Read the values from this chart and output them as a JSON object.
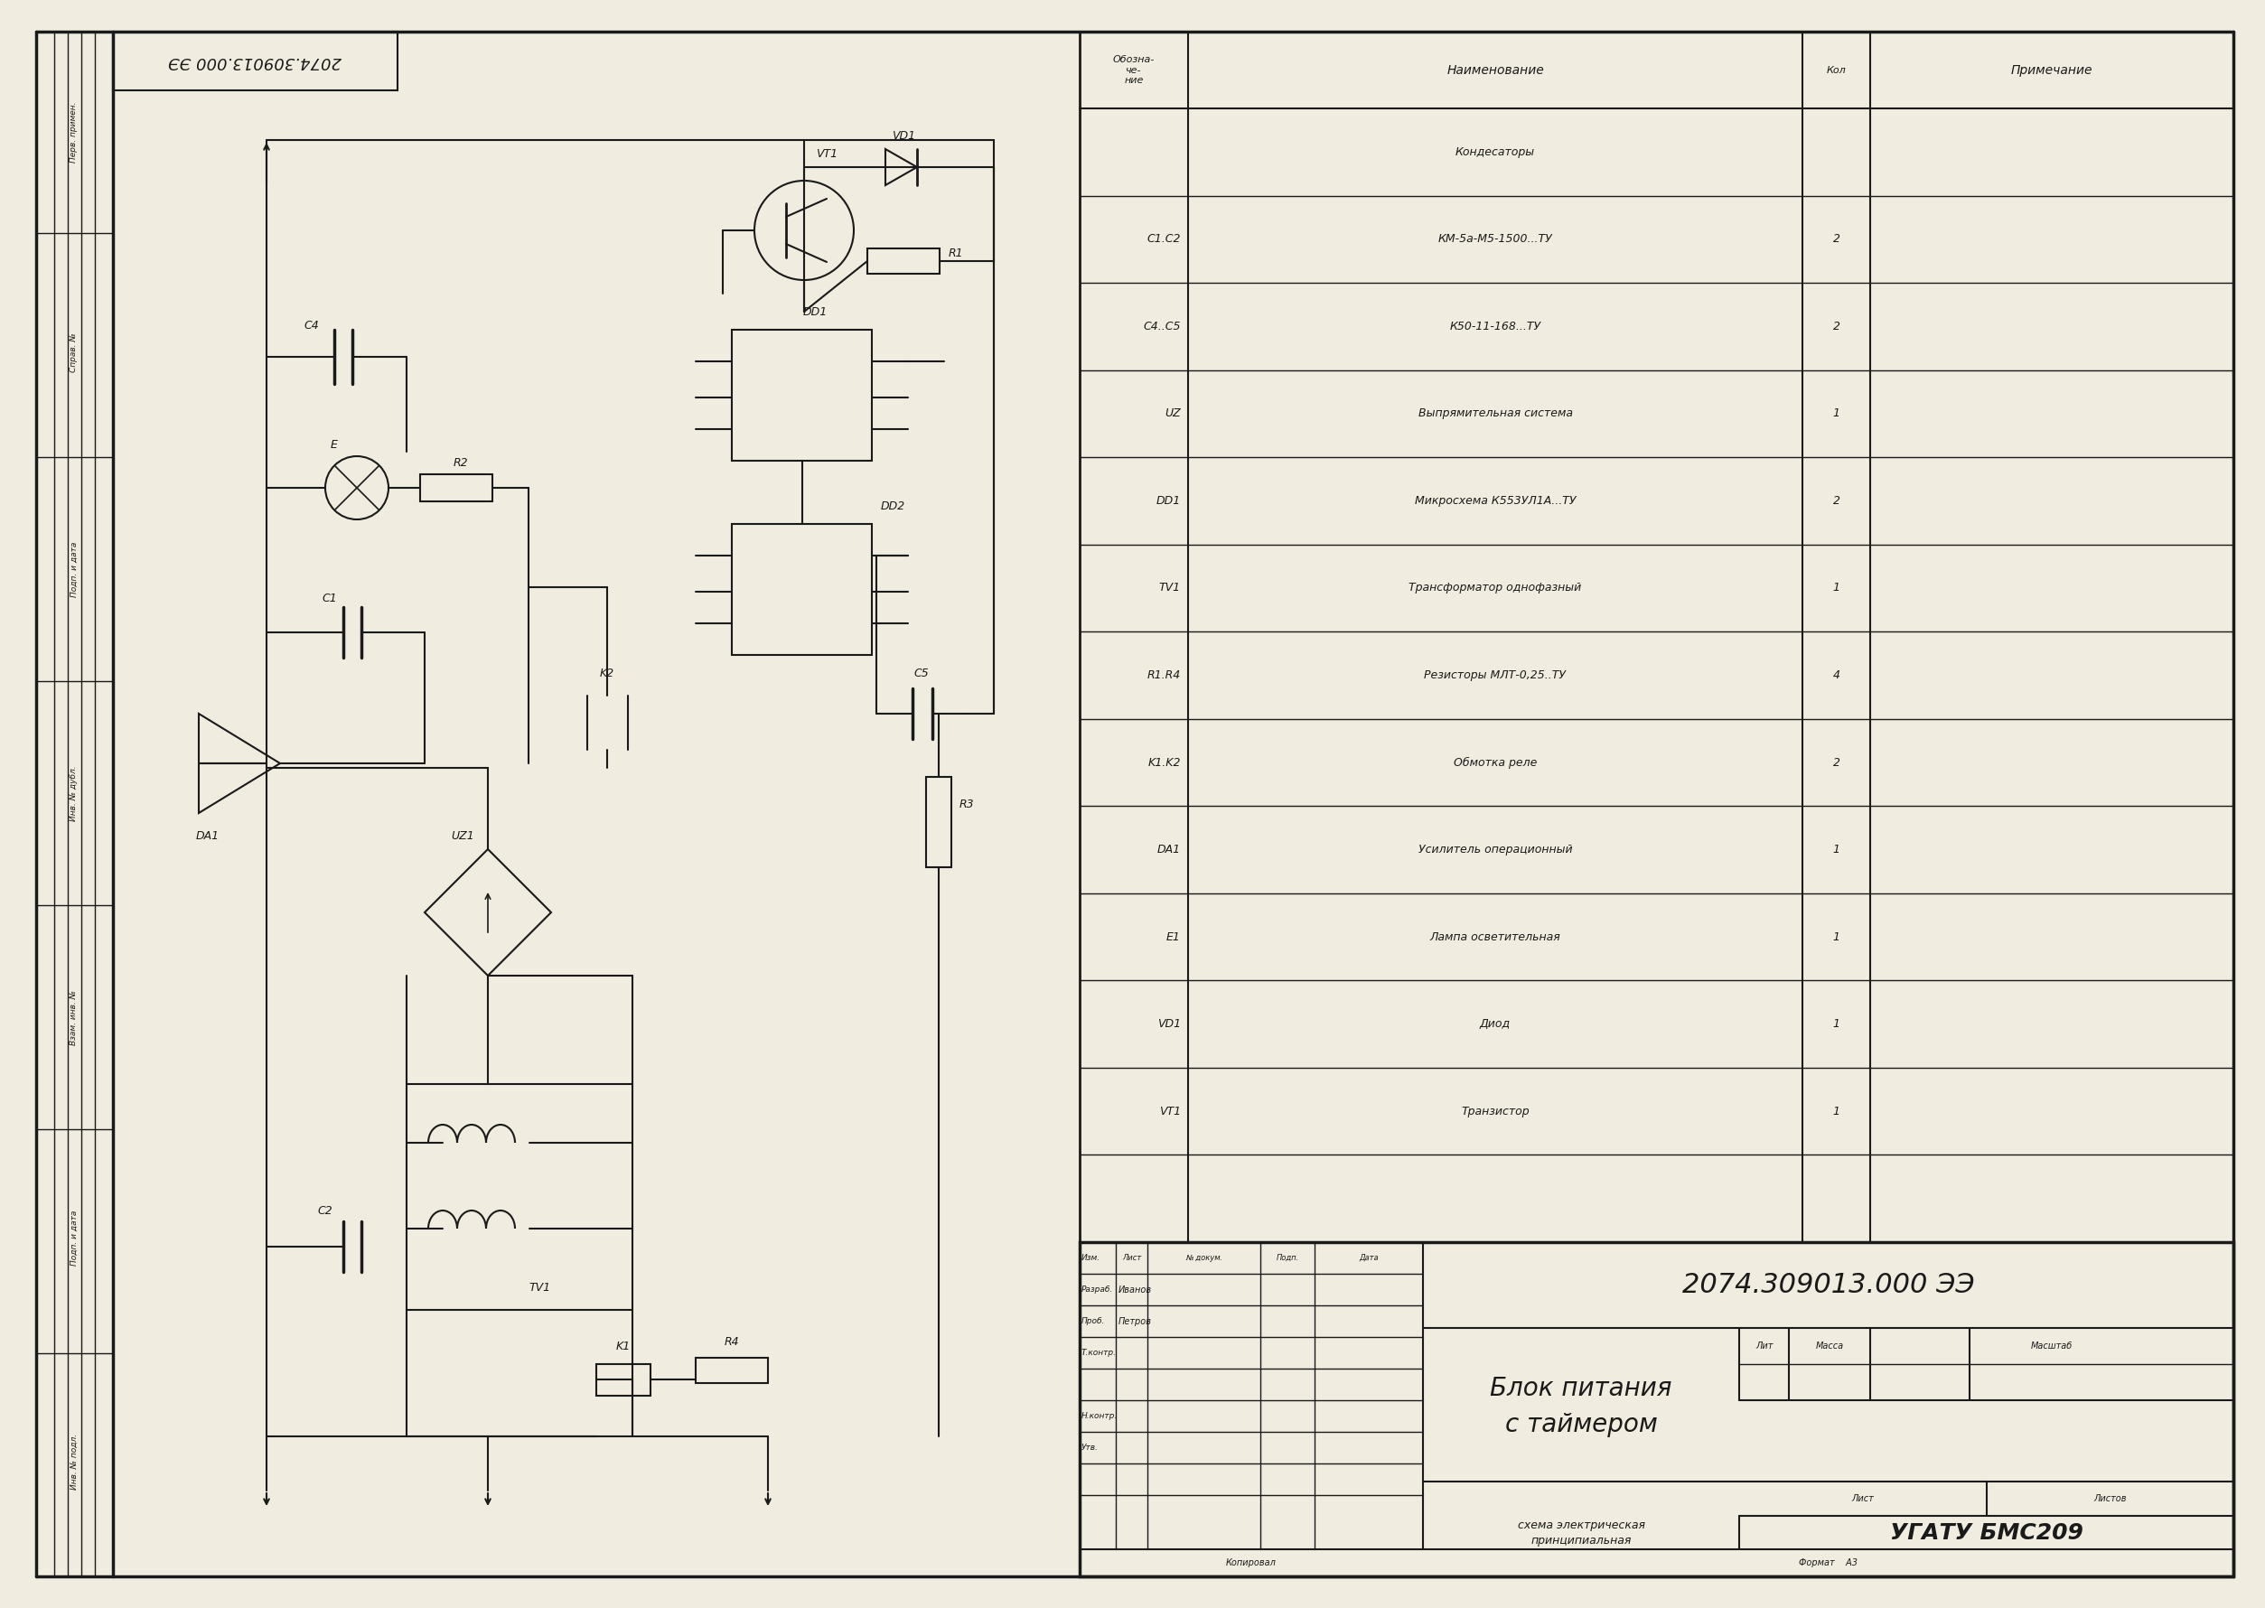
{
  "bg_color": "#f0ece0",
  "line_color": "#1a1a1a",
  "text_color": "#1a1a1a",
  "fig_width": 24.87,
  "fig_height": 17.6,
  "parts_rows": [
    [
      "",
      "Кондесаторы",
      "",
      ""
    ],
    [
      "C1.C2",
      "КМ-5а-М5-1500...ТУ",
      "2",
      ""
    ],
    [
      "C4..C5",
      "К50-11-168...ТУ",
      "2",
      ""
    ],
    [
      "UZ",
      "Выпрямительная система",
      "1",
      ""
    ],
    [
      "DD1",
      "Микросхема К553УЛ1А...ТУ",
      "2",
      ""
    ],
    [
      "TV1",
      "Трансформатор однофазный",
      "1",
      ""
    ],
    [
      "R1.R4",
      "Резисторы МЛТ-0,25..ТУ",
      "4",
      ""
    ],
    [
      "K1.K2",
      "Обмотка реле",
      "2",
      ""
    ],
    [
      "DA1",
      "Усилитель операционный",
      "1",
      ""
    ],
    [
      "E1",
      "Лампа осветительная",
      "1",
      ""
    ],
    [
      "VD1",
      "Диод",
      "1",
      ""
    ],
    [
      "VT1",
      "Транзистор",
      "1",
      ""
    ],
    [
      "",
      "",
      "",
      ""
    ]
  ],
  "tb_doc_number": "2074.309013.000 ЭЭ",
  "tb_title1": "Блок питания",
  "tb_title2": "с таймером",
  "tb_desc1": "схема электрическая",
  "tb_desc2": "принципиальная",
  "tb_org": "УГАТУ БМС209",
  "top_label": "2074.309013.000 ЭЭ"
}
